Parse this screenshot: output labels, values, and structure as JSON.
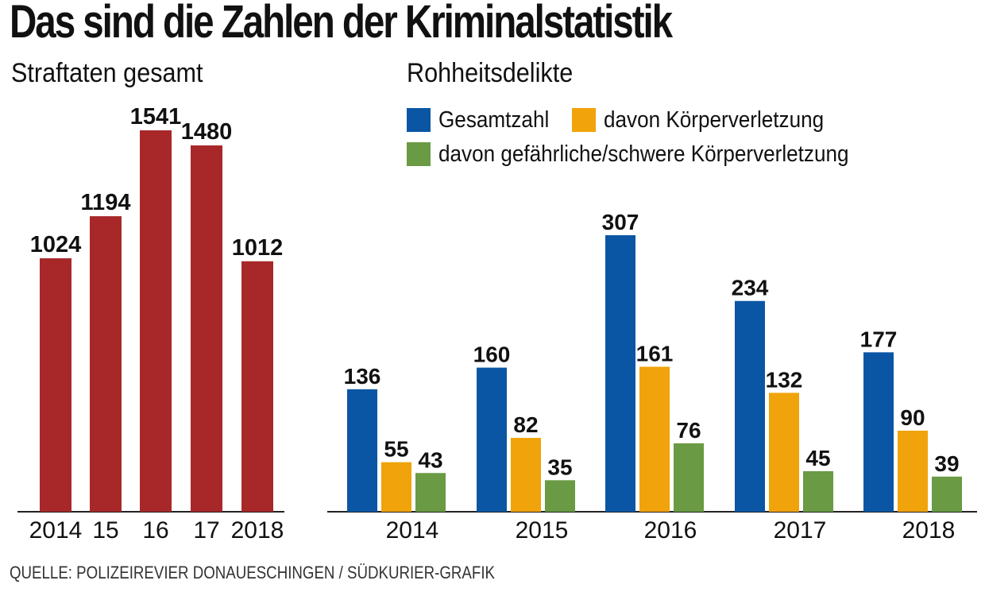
{
  "title": "Das sind die Zahlen der Kriminalstatistik",
  "source": "QUELLE: POLIZEIREVIER DONAUESCHINGEN / SÜDKURIER-GRAFIK",
  "colors": {
    "left_bar": "#a8282a",
    "blue": "#0b56a4",
    "orange": "#f0a30a",
    "green": "#6a9a44",
    "axis": "#222222"
  },
  "chart_data": [
    {
      "type": "bar",
      "title": "Straftaten gesamt",
      "categories": [
        "2014",
        "15",
        "16",
        "17",
        "2018"
      ],
      "values": [
        1024,
        1194,
        1541,
        1480,
        1012
      ],
      "ylim": [
        0,
        1600
      ],
      "grid": false,
      "legend": "none"
    },
    {
      "type": "bar",
      "title": "Rohheitsdelikte",
      "categories": [
        "2014",
        "2015",
        "2016",
        "2017",
        "2018"
      ],
      "series": [
        {
          "name": "Gesamtzahl",
          "values": [
            136,
            160,
            307,
            234,
            177
          ]
        },
        {
          "name": "davon Körperverletzung",
          "values": [
            55,
            82,
            161,
            132,
            90
          ]
        },
        {
          "name": "davon gefährliche/schwere Körperverletzung",
          "values": [
            43,
            35,
            76,
            45,
            39
          ]
        }
      ],
      "ylim": [
        0,
        320
      ],
      "grid": false,
      "legend": "top"
    }
  ]
}
